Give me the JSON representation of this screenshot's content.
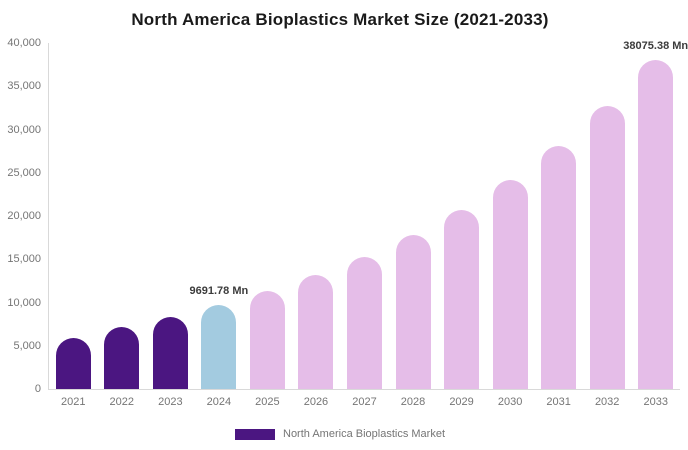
{
  "chart_data": {
    "type": "bar",
    "title": "North America Bioplastics Market Size (2021-2033)",
    "categories": [
      "2021",
      "2022",
      "2023",
      "2024",
      "2025",
      "2026",
      "2027",
      "2028",
      "2029",
      "2030",
      "2031",
      "2032",
      "2033"
    ],
    "values": [
      5900,
      7150,
      8320,
      9691.78,
      11280,
      13140,
      15290,
      17800,
      20720,
      24130,
      28090,
      32700,
      38075.38
    ],
    "point_labels": {
      "2024": "9691.78 Mn",
      "2033": "38075.38 Mn"
    },
    "colors": [
      "#4b1681",
      "#4b1681",
      "#4b1681",
      "#a3cbe0",
      "#e5bde8",
      "#e5bde8",
      "#e5bde8",
      "#e5bde8",
      "#e5bde8",
      "#e5bde8",
      "#e5bde8",
      "#e5bde8",
      "#e5bde8"
    ],
    "ylim": [
      0,
      40000
    ],
    "y_tick_step": 5000,
    "grid": false,
    "legend": {
      "label": "North America Bioplastics Market",
      "position": "bottom",
      "color": "#4b1681"
    },
    "axis_color": "#d9d9d9",
    "tick_text_color": "#757575",
    "value_label_color": "#3c3c3c"
  }
}
